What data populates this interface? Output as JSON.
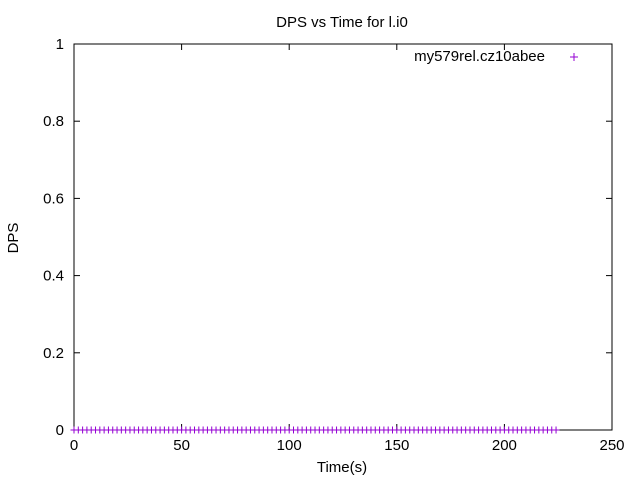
{
  "chart_data": {
    "type": "scatter",
    "title": "DPS vs Time for l.i0",
    "xlabel": "Time(s)",
    "ylabel": "DPS",
    "xlim": [
      0,
      250
    ],
    "ylim": [
      0,
      1
    ],
    "xticks": [
      0,
      50,
      100,
      150,
      200,
      250
    ],
    "yticks": [
      0,
      0.2,
      0.4,
      0.6,
      0.8,
      1
    ],
    "xtick_labels": [
      "0",
      "50",
      "100",
      "150",
      "200",
      "250"
    ],
    "ytick_labels": [
      "0",
      "0.2",
      "0.4",
      "0.6",
      "0.8",
      "1"
    ],
    "grid": false,
    "legend_position": "top-right",
    "series": [
      {
        "name": "my579rel.cz10abee",
        "color": "#9400d3",
        "marker": "plus",
        "x_start": 0,
        "x_end": 225,
        "x_step": 2,
        "y": 0
      }
    ]
  }
}
